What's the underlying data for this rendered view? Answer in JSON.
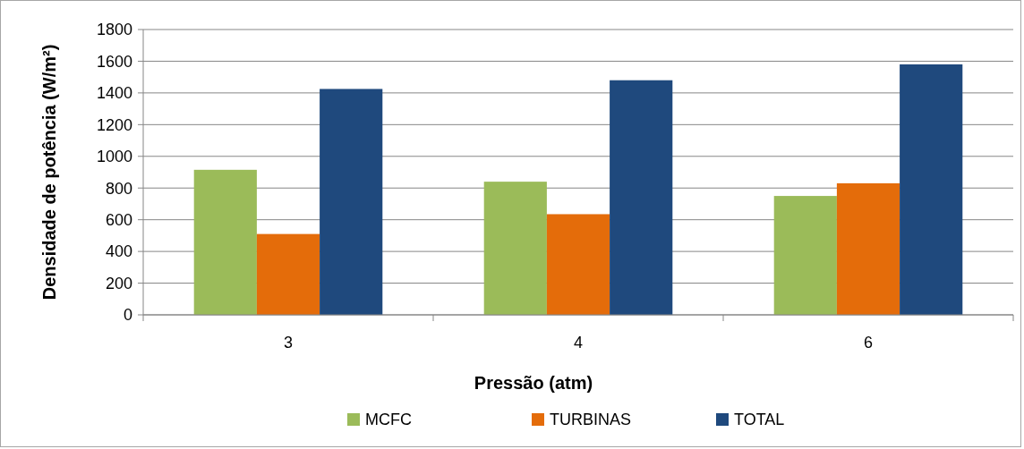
{
  "chart_data": {
    "type": "bar",
    "xlabel": "Pressão (atm)",
    "ylabel": "Densidade de potência (W/m²)",
    "categories": [
      "3",
      "4",
      "6"
    ],
    "series": [
      {
        "name": "MCFC",
        "color": "#9bbb59",
        "values": [
          915,
          840,
          750
        ]
      },
      {
        "name": "TURBINAS",
        "color": "#e46c0a",
        "values": [
          510,
          635,
          830
        ]
      },
      {
        "name": "TOTAL",
        "color": "#1f497d",
        "values": [
          1425,
          1480,
          1580
        ]
      }
    ],
    "ylim": [
      0,
      1800
    ],
    "yticks": [
      0,
      200,
      400,
      600,
      800,
      1000,
      1200,
      1400,
      1600,
      1800
    ],
    "grid": "y",
    "legend": "bottom"
  }
}
